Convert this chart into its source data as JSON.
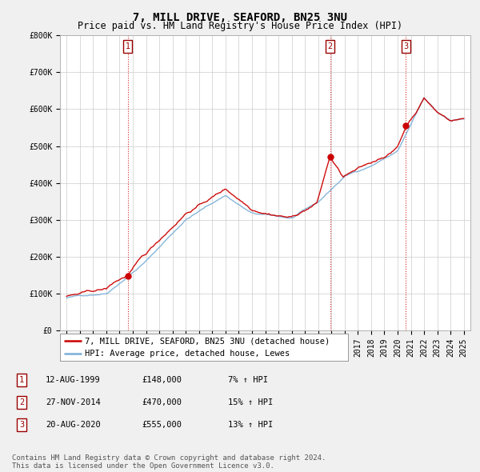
{
  "title": "7, MILL DRIVE, SEAFORD, BN25 3NU",
  "subtitle": "Price paid vs. HM Land Registry's House Price Index (HPI)",
  "ylim": [
    0,
    800000
  ],
  "yticks": [
    0,
    100000,
    200000,
    300000,
    400000,
    500000,
    600000,
    700000,
    800000
  ],
  "ytick_labels": [
    "£0",
    "£100K",
    "£200K",
    "£300K",
    "£400K",
    "£500K",
    "£600K",
    "£700K",
    "£800K"
  ],
  "background_color": "#f0f0f0",
  "plot_bg_color": "#ffffff",
  "grid_color": "#cccccc",
  "sale_line_color": "#cc0000",
  "hpi_line_color": "#7aaed6",
  "purchase_dates": [
    1999.61,
    2014.9,
    2020.63
  ],
  "purchase_prices": [
    148000,
    470000,
    555000
  ],
  "vline_color": "#cc0000",
  "legend_sale_label": "7, MILL DRIVE, SEAFORD, BN25 3NU (detached house)",
  "legend_hpi_label": "HPI: Average price, detached house, Lewes",
  "table_rows": [
    [
      "1",
      "12-AUG-1999",
      "£148,000",
      "7% ↑ HPI"
    ],
    [
      "2",
      "27-NOV-2014",
      "£470,000",
      "15% ↑ HPI"
    ],
    [
      "3",
      "20-AUG-2020",
      "£555,000",
      "13% ↑ HPI"
    ]
  ],
  "footer": "Contains HM Land Registry data © Crown copyright and database right 2024.\nThis data is licensed under the Open Government Licence v3.0.",
  "title_fontsize": 10,
  "subtitle_fontsize": 8.5,
  "tick_fontsize": 7,
  "legend_fontsize": 7.5,
  "table_fontsize": 7.5,
  "footer_fontsize": 6.5
}
